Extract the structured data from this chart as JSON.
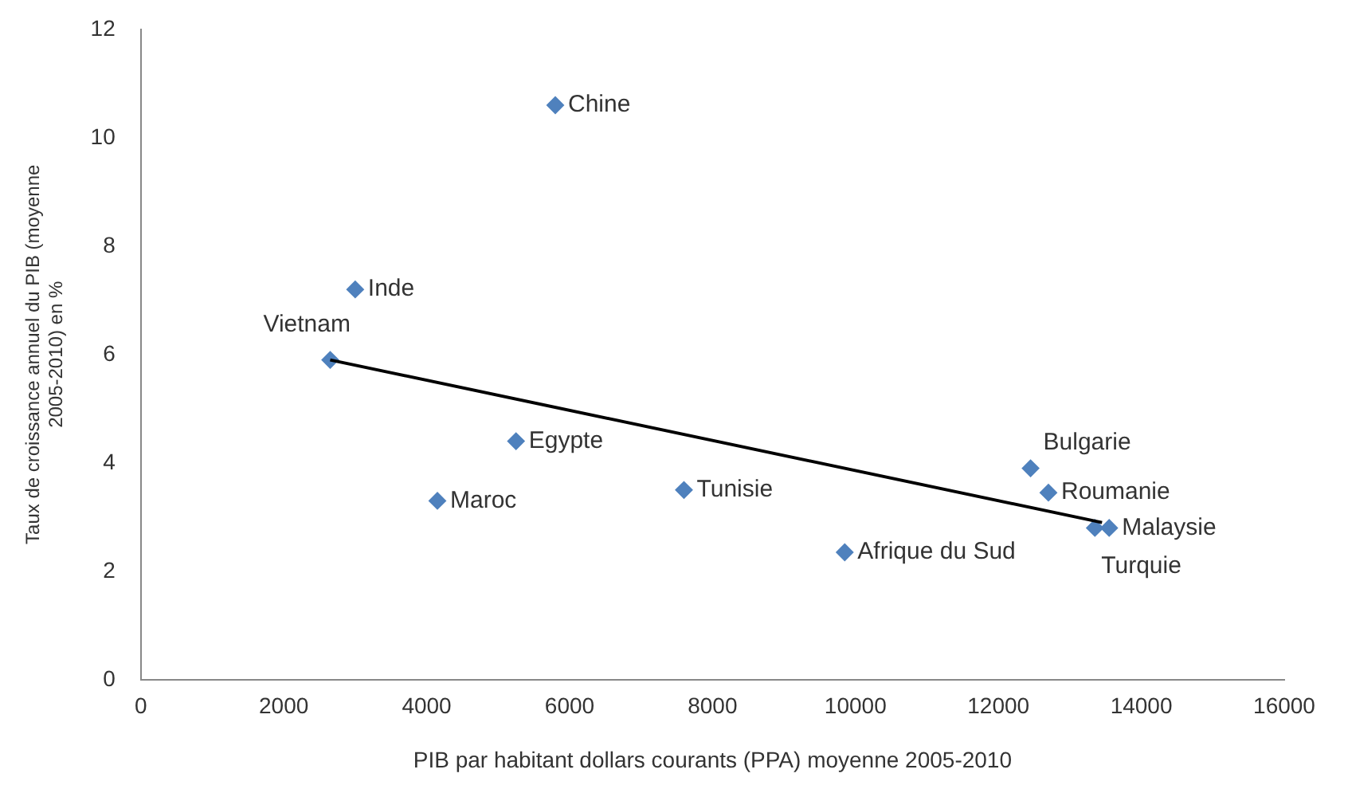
{
  "chart_data": {
    "type": "scatter",
    "xlabel": "PIB par habitant dollars courants (PPA) moyenne 2005-2010",
    "ylabel": "Taux de croissance annuel du PIB (moyenne\n2005-2010) en %",
    "xlim": [
      0,
      16000
    ],
    "xticks": [
      0,
      2000,
      4000,
      6000,
      8000,
      10000,
      12000,
      14000,
      16000
    ],
    "ylim": [
      0,
      12
    ],
    "yticks": [
      0,
      2,
      4,
      6,
      8,
      10,
      12
    ],
    "grid": false,
    "legend": false,
    "marker": "diamond",
    "series": [
      {
        "color": "#4f81bd",
        "x": [
          5800,
          3000,
          2650,
          5250,
          4150,
          7600,
          9850,
          12450,
          12700,
          13350,
          13550
        ],
        "values": [
          10.6,
          7.2,
          5.9,
          4.4,
          3.3,
          3.5,
          2.35,
          3.9,
          3.45,
          2.8,
          2.8
        ],
        "value_labels": [
          "Chine",
          "Inde",
          "Vietnam",
          "Egypte",
          "Maroc",
          "Tunisie",
          "Afrique du Sud",
          "Bulgarie",
          "Roumanie",
          "Turquie",
          "Malaysie"
        ]
      },
      {
        "type": "line",
        "color": "#000000",
        "marker": "none",
        "x": [
          2650,
          13450
        ],
        "values": [
          5.9,
          2.9
        ]
      }
    ]
  }
}
